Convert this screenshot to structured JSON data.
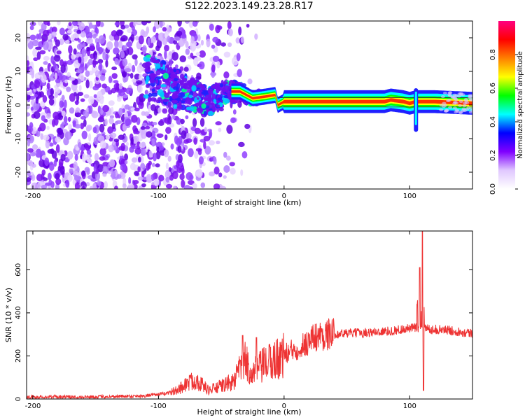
{
  "title": "S122.2023.149.23.28.R17",
  "chart_data": [
    {
      "type": "heatmap",
      "xlabel": "Height of straight line (km)",
      "ylabel": "Frequency (Hz)",
      "xlim": [
        -205,
        150
      ],
      "ylim": [
        -25,
        25
      ],
      "x_ticks": [
        -200,
        -100,
        0,
        100
      ],
      "y_ticks": [
        -20,
        -10,
        0,
        10,
        20
      ],
      "colorbar": {
        "label": "Normalized spectral amplitude",
        "range": [
          0,
          1
        ],
        "ticks": [
          0.0,
          0.2,
          0.4,
          0.6,
          0.8
        ],
        "colormap": [
          "#ffffff",
          "#e0c8ff",
          "#8000ff",
          "#0000ff",
          "#00ffff",
          "#00ff00",
          "#ffff00",
          "#ff8000",
          "#ff0000",
          "#ff0080"
        ]
      },
      "ridge": [
        {
          "x": -120,
          "y": 10
        },
        {
          "x": -100,
          "y": 7
        },
        {
          "x": -80,
          "y": 4
        },
        {
          "x": -60,
          "y": 1
        },
        {
          "x": -45,
          "y": 4
        },
        {
          "x": -35,
          "y": 4
        },
        {
          "x": -25,
          "y": 2
        },
        {
          "x": -15,
          "y": 2.5
        },
        {
          "x": -7,
          "y": 3
        },
        {
          "x": -5,
          "y": 0
        },
        {
          "x": 0,
          "y": 1
        },
        {
          "x": 20,
          "y": 1
        },
        {
          "x": 60,
          "y": 1
        },
        {
          "x": 80,
          "y": 1
        },
        {
          "x": 85,
          "y": 1.5
        },
        {
          "x": 95,
          "y": 1
        },
        {
          "x": 100,
          "y": 0.5
        },
        {
          "x": 105,
          "y": 1
        },
        {
          "x": 120,
          "y": 1
        },
        {
          "x": 150,
          "y": 0.5
        }
      ],
      "spike": {
        "x": 105,
        "y_range": [
          -8,
          5
        ]
      }
    },
    {
      "type": "line",
      "xlabel": "Height of straight line (km)",
      "ylabel": "SNR (10 * v/v)",
      "xlim": [
        -205,
        150
      ],
      "ylim": [
        0,
        780
      ],
      "x_ticks": [
        -200,
        -100,
        0,
        100
      ],
      "y_ticks": [
        0,
        200,
        400,
        600
      ],
      "series": [
        {
          "color": "#ee3333",
          "envelope": [
            {
              "x": -205,
              "y": 10
            },
            {
              "x": -150,
              "y": 10
            },
            {
              "x": -110,
              "y": 15
            },
            {
              "x": -95,
              "y": 25
            },
            {
              "x": -85,
              "y": 40
            },
            {
              "x": -78,
              "y": 70
            },
            {
              "x": -70,
              "y": 90
            },
            {
              "x": -60,
              "y": 40
            },
            {
              "x": -50,
              "y": 60
            },
            {
              "x": -40,
              "y": 80
            },
            {
              "x": -32,
              "y": 180
            },
            {
              "x": -25,
              "y": 120
            },
            {
              "x": -15,
              "y": 160
            },
            {
              "x": -5,
              "y": 190
            },
            {
              "x": 5,
              "y": 220
            },
            {
              "x": 15,
              "y": 250
            },
            {
              "x": 25,
              "y": 290
            },
            {
              "x": 35,
              "y": 300
            },
            {
              "x": 50,
              "y": 305
            },
            {
              "x": 70,
              "y": 310
            },
            {
              "x": 85,
              "y": 315
            },
            {
              "x": 95,
              "y": 325
            },
            {
              "x": 105,
              "y": 330
            },
            {
              "x": 115,
              "y": 325
            },
            {
              "x": 130,
              "y": 320
            },
            {
              "x": 150,
              "y": 305
            }
          ],
          "spikes": [
            {
              "x": -33,
              "y": 295
            },
            {
              "x": -22,
              "y": 285
            },
            {
              "x": 106,
              "y": 440
            },
            {
              "x": 108,
              "y": 610
            },
            {
              "x": 110,
              "y": 780
            },
            {
              "x": 111,
              "y": 40
            }
          ]
        }
      ]
    }
  ]
}
